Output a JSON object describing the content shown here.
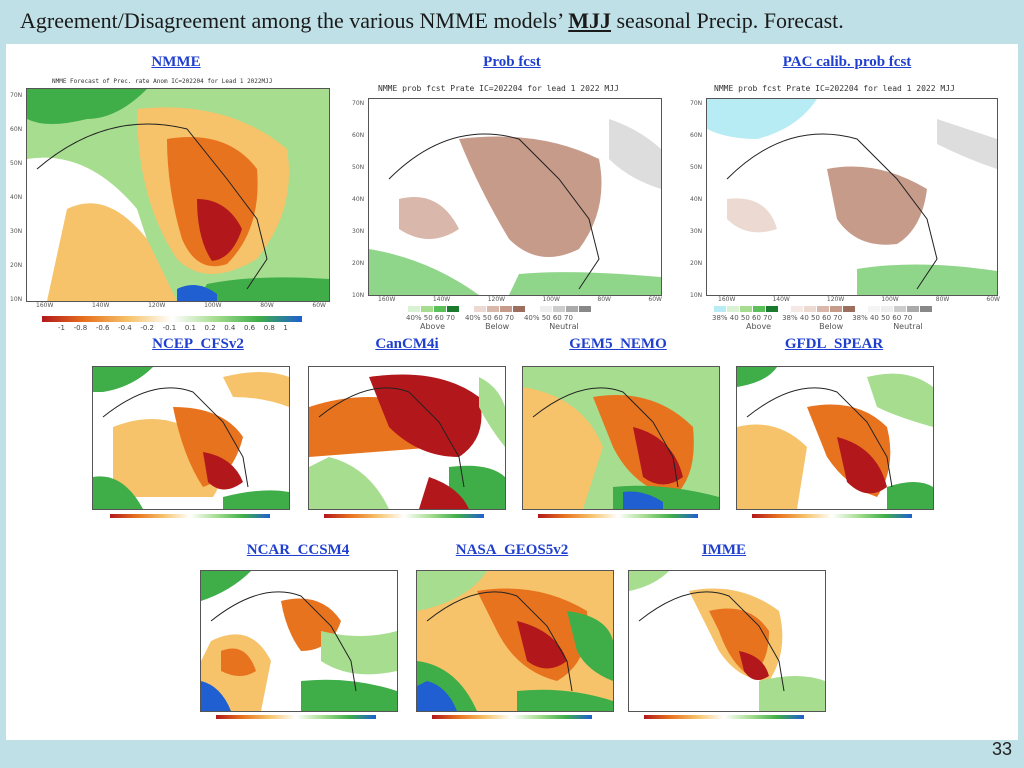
{
  "slide": {
    "title_before": "Agreement/Disagreement among the various NMME models’",
    "title_emph": "MJJ",
    "title_after": "seasonal Precip. Forecast.",
    "page_number": "33"
  },
  "panels": {
    "nmme": {
      "label": "NMME",
      "caption": "NMME Forecast of Prec. rate Anom IC=202204 for Lead 1 2022MJJ",
      "lats": [
        "70N",
        "60N",
        "50N",
        "40N",
        "30N",
        "20N",
        "10N"
      ],
      "lons": [
        "160W",
        "140W",
        "120W",
        "100W",
        "80W",
        "60W"
      ],
      "cbar_labels": [
        "-1",
        "-0.8",
        "-0.6",
        "-0.4",
        "-0.2",
        "-0.1",
        "0.1",
        "0.2",
        "0.4",
        "0.6",
        "0.8",
        "1"
      ]
    },
    "prob": {
      "label": "Prob fcst",
      "caption": "NMME prob fcst Prate IC=202204 for lead 1 2022 MJJ",
      "lats": [
        "70N",
        "60N",
        "50N",
        "40N",
        "30N",
        "20N",
        "10N"
      ],
      "lons": [
        "160W",
        "140W",
        "120W",
        "100W",
        "80W",
        "60W"
      ],
      "legend": [
        "40% 50 60 70",
        "40% 50 60 70",
        "40% 50 60 70"
      ],
      "legend_names": [
        "Above",
        "Below",
        "Neutral"
      ]
    },
    "pac": {
      "label": "PAC calib. prob fcst",
      "caption": "NMME prob fcst Prate IC=202204 for lead 1 2022 MJJ",
      "lats": [
        "70N",
        "60N",
        "50N",
        "40N",
        "30N",
        "20N",
        "10N"
      ],
      "lons": [
        "160W",
        "140W",
        "120W",
        "100W",
        "80W",
        "60W"
      ],
      "legend": [
        "38% 40 50 60 70",
        "38% 40 50 60 70",
        "38% 40 50 60 70"
      ],
      "legend_names": [
        "Above",
        "Below",
        "Neutral"
      ]
    },
    "cfsv2": {
      "label": "NCEP_CFSv2"
    },
    "cancm4i": {
      "label": "CanCM4i"
    },
    "gem5": {
      "label": "GEM5_NEMO"
    },
    "gfdl": {
      "label": "GFDL_SPEAR"
    },
    "ccsm4": {
      "label": "NCAR_CCSM4"
    },
    "geos": {
      "label": "NASA_GEOS5v2"
    },
    "imme": {
      "label": "IMME"
    }
  },
  "colors": {
    "dry_dark": "#b2181b",
    "dry_mid": "#e8731f",
    "dry_light": "#f6c36a",
    "wet_light": "#a6dd8f",
    "wet_mid": "#3fae49",
    "wet_dark": "#1a7a2e",
    "ocean_deep": "#1f5fd1",
    "prob_brown": "#c79b8a",
    "prob_green": "#8fd68a",
    "prob_cyan": "#b8ecf5",
    "label_blue": "#1f3fcf"
  }
}
